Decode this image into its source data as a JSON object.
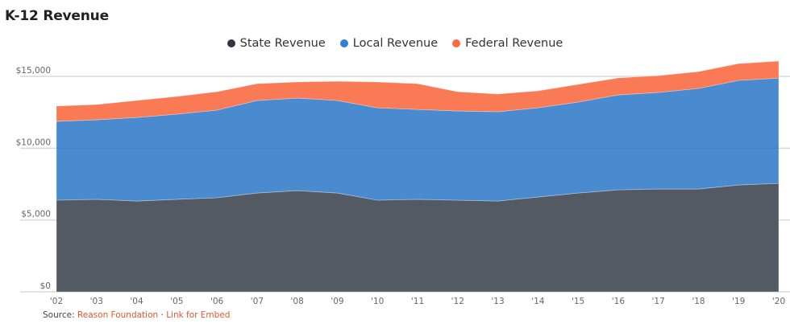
{
  "header": {
    "title": "K-12 Revenue"
  },
  "legend": [
    {
      "label": "State Revenue",
      "color": "#2e3645"
    },
    {
      "label": "Local Revenue",
      "color": "#2f7fd2"
    },
    {
      "label": "Federal Revenue",
      "color": "#ff6a3d"
    }
  ],
  "source": {
    "prefix": "Source: ",
    "org": "Reason Foundation",
    "sep": " · ",
    "embed": "Link for Embed"
  },
  "chart_data": {
    "type": "area",
    "stacked": true,
    "title": "K-12 Revenue",
    "xlabel": "",
    "ylabel": "",
    "x": [
      "'02",
      "'03",
      "'04",
      "'05",
      "'06",
      "'07",
      "'08",
      "'09",
      "'10",
      "'11",
      "'12",
      "'13",
      "'14",
      "'15",
      "'16",
      "'17",
      "'18",
      "'19",
      "'20"
    ],
    "yticks": [
      "$0",
      "$5,000",
      "$10,000",
      "$15,000"
    ],
    "ytick_values": [
      0,
      5000,
      10000,
      15000
    ],
    "ylim": [
      0,
      16500
    ],
    "grid": true,
    "legend_position": "top-center",
    "series": [
      {
        "name": "State Revenue",
        "color": "#535a64",
        "values": [
          6380,
          6440,
          6320,
          6440,
          6550,
          6880,
          7050,
          6880,
          6380,
          6440,
          6380,
          6320,
          6600,
          6880,
          7100,
          7160,
          7160,
          7440,
          7550
        ]
      },
      {
        "name": "Local Revenue",
        "color": "#4a8bd0",
        "values": [
          5490,
          5540,
          5820,
          5930,
          6100,
          6440,
          6440,
          6440,
          6430,
          6260,
          6210,
          6220,
          6210,
          6330,
          6610,
          6720,
          7000,
          7280,
          7330
        ]
      },
      {
        "name": "Federal Revenue",
        "color": "#fa7a55",
        "values": [
          1060,
          1060,
          1180,
          1230,
          1280,
          1170,
          1120,
          1340,
          1800,
          1790,
          1340,
          1230,
          1180,
          1230,
          1180,
          1170,
          1170,
          1170,
          1180
        ]
      }
    ]
  }
}
